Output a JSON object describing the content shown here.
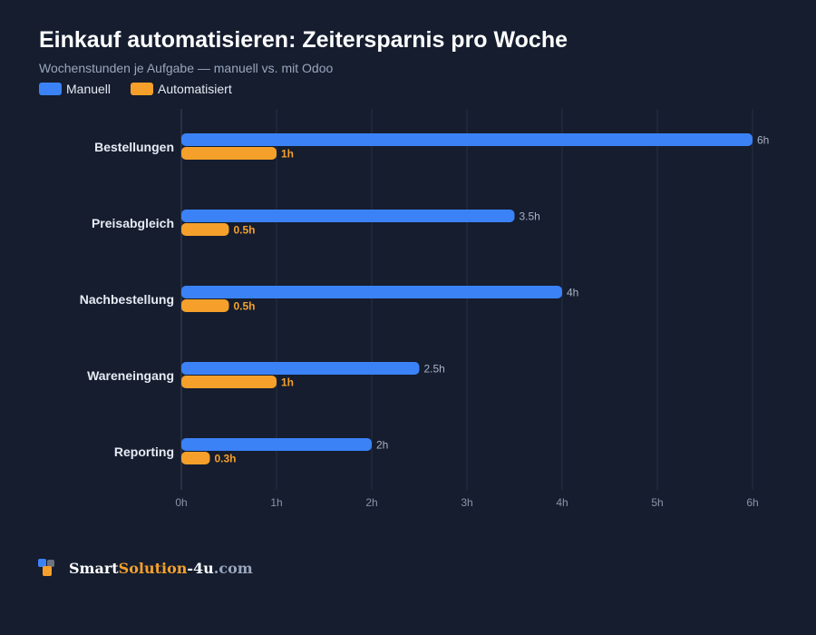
{
  "colors": {
    "background": "#151d2f",
    "manual": "#3b82f6",
    "automated": "#f5a02a",
    "grid": "#263043",
    "axis_text": "#8b95a8",
    "category_text": "#e6ebf3",
    "manual_label": "#a8b2c4",
    "automated_label": "#f5a02a"
  },
  "chart_data": {
    "type": "bar",
    "orientation": "horizontal",
    "title": "Einkauf automatisieren: Zeitersparnis pro Woche",
    "subtitle": "Wochenstunden je Aufgabe — manuell vs. mit Odoo",
    "categories": [
      "Bestellungen",
      "Preisabgleich",
      "Nachbestellung",
      "Wareneingang",
      "Reporting"
    ],
    "series": [
      {
        "name": "Manuell",
        "values": [
          6,
          3.5,
          4,
          2.5,
          2
        ],
        "labels": [
          "6h",
          "3.5h",
          "4h",
          "2.5h",
          "2h"
        ]
      },
      {
        "name": "Automatisiert",
        "values": [
          1,
          0.5,
          0.5,
          1,
          0.3
        ],
        "labels": [
          "1h",
          "0.5h",
          "0.5h",
          "1h",
          "0.3h"
        ]
      }
    ],
    "xlim": [
      0,
      6
    ],
    "x_ticks": [
      0,
      1,
      2,
      3,
      4,
      5,
      6
    ],
    "x_tick_labels": [
      "0h",
      "1h",
      "2h",
      "3h",
      "4h",
      "5h",
      "6h"
    ],
    "grid": "vertical",
    "legend_position": "top-left"
  },
  "footer": {
    "brand_part1": "Smart",
    "brand_part2": "Solution",
    "brand_part3": "-4u",
    "brand_part4": ".com",
    "logo_icon": "squares-logo-icon"
  }
}
